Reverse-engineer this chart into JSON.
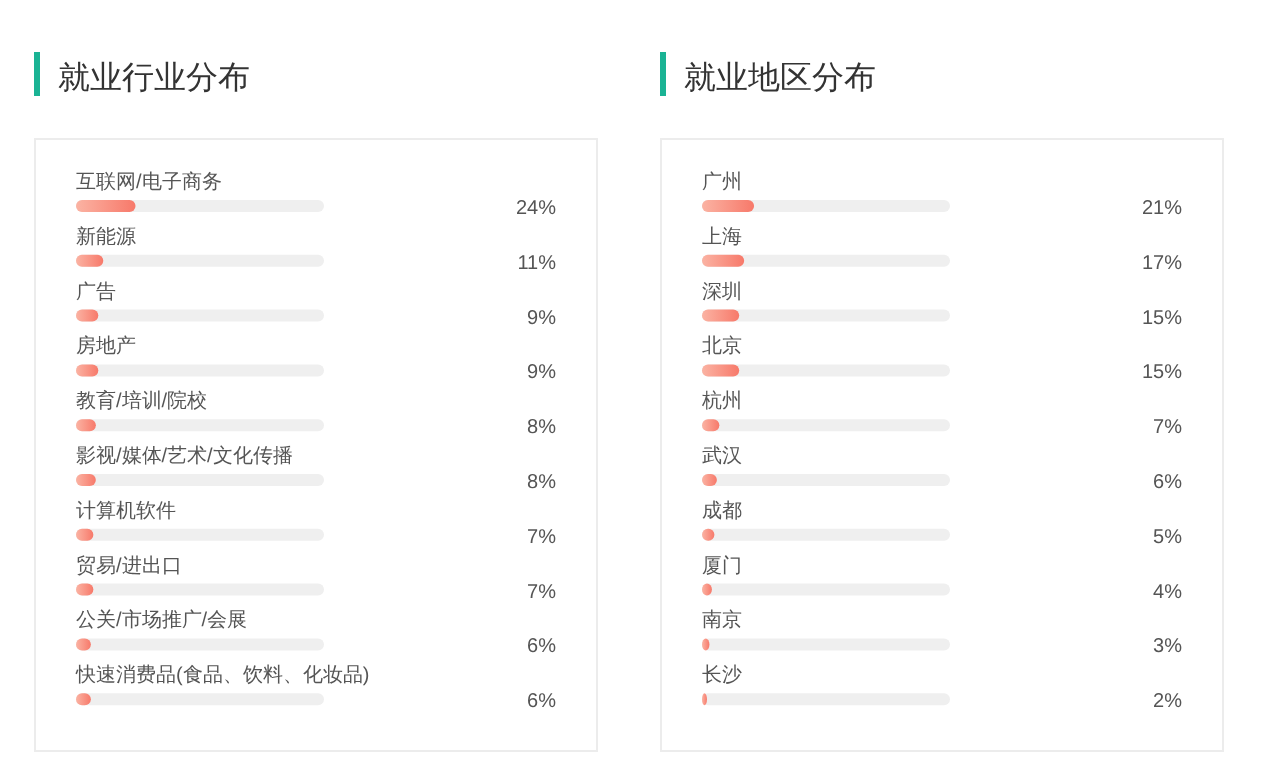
{
  "chart_data": [
    {
      "type": "bar",
      "orientation": "horizontal",
      "title": "就业行业分布",
      "categories": [
        "互联网/电子商务",
        "新能源",
        "广告",
        "房地产",
        "教育/培训/院校",
        "影视/媒体/艺术/文化传播",
        "计算机软件",
        "贸易/进出口",
        "公关/市场推广/会展",
        "快速消费品(食品、饮料、化妆品)"
      ],
      "xlim": [
        0,
        100
      ],
      "color": "#f7796a",
      "values": [
        24,
        11,
        9,
        9,
        8,
        8,
        7,
        7,
        6,
        6
      ],
      "value_labels": [
        "24%",
        "11%",
        "9%",
        "9%",
        "8%",
        "8%",
        "7%",
        "7%",
        "6%",
        "6%"
      ]
    },
    {
      "type": "bar",
      "orientation": "horizontal",
      "title": "就业地区分布",
      "categories": [
        "广州",
        "上海",
        "深圳",
        "北京",
        "杭州",
        "武汉",
        "成都",
        "厦门",
        "南京",
        "长沙"
      ],
      "xlim": [
        0,
        100
      ],
      "color": "#f7796a",
      "values": [
        21,
        17,
        15,
        15,
        7,
        6,
        5,
        4,
        3,
        2
      ],
      "value_labels": [
        "21%",
        "17%",
        "15%",
        "15%",
        "7%",
        "6%",
        "5%",
        "4%",
        "3%",
        "2%"
      ]
    }
  ]
}
